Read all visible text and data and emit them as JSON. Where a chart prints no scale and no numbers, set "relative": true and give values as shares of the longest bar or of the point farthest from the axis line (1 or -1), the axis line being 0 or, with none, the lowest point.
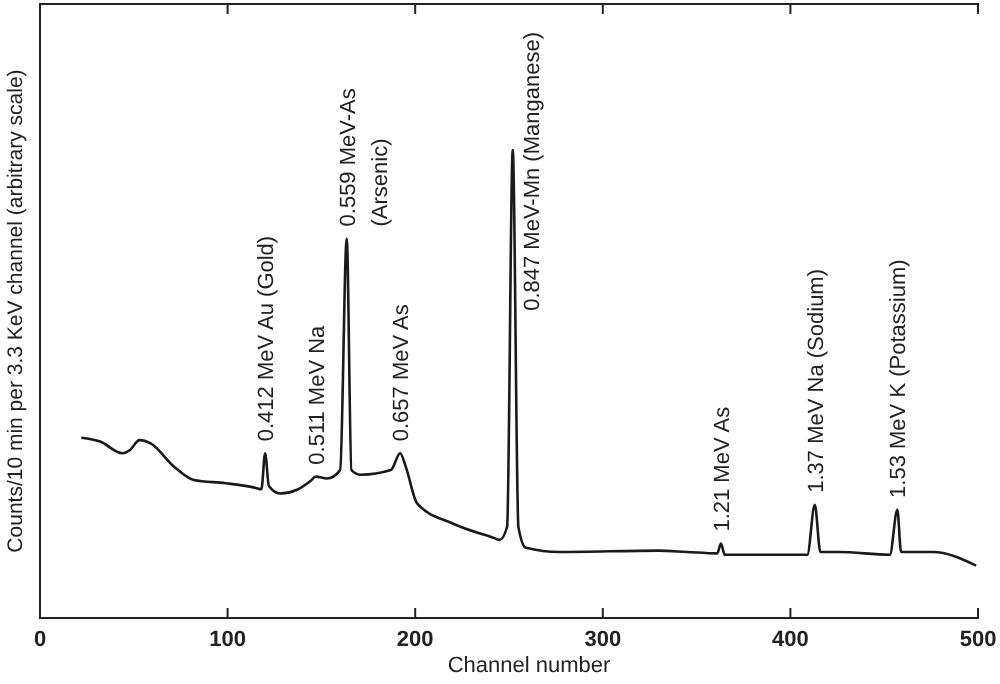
{
  "chart_data": {
    "type": "line",
    "relative": true,
    "xlabel": "Channel number",
    "ylabel": "Counts/10 min per 3.3 KeV channel (arbitrary scale)",
    "xlim": [
      0,
      500
    ],
    "xticks": [
      0,
      100,
      200,
      300,
      400,
      500
    ],
    "grid": false,
    "marker": "none",
    "line_style": "solid",
    "series": [
      {
        "color": "#1a1a1a",
        "x": [
          22,
          32,
          44,
          48,
          53,
          59,
          71,
          82,
          99,
          115,
          118,
          120,
          122,
          128,
          137,
          144,
          147,
          153,
          160,
          163.5,
          166,
          171,
          187,
          192,
          195,
          201,
          220,
          242,
          245,
          249,
          252,
          255,
          259,
          277,
          330,
          345,
          361,
          363,
          365,
          409,
          413,
          416,
          426,
          453,
          457,
          459,
          476,
          499
        ],
        "values": [
          0.385,
          0.377,
          0.352,
          0.359,
          0.38,
          0.373,
          0.325,
          0.295,
          0.288,
          0.278,
          0.275,
          0.352,
          0.282,
          0.266,
          0.274,
          0.292,
          0.302,
          0.298,
          0.316,
          0.811,
          0.316,
          0.306,
          0.316,
          0.352,
          0.323,
          0.245,
          0.202,
          0.171,
          0.167,
          0.195,
          1.0,
          0.195,
          0.15,
          0.141,
          0.144,
          0.141,
          0.138,
          0.159,
          0.135,
          0.135,
          0.242,
          0.141,
          0.141,
          0.135,
          0.231,
          0.141,
          0.141,
          0.112
        ]
      }
    ],
    "annotations": [
      {
        "text": "0.412 MeV  Au  (Gold)",
        "x": 120,
        "y": 0.352
      },
      {
        "text": "0.511 MeV  Na",
        "x": 147,
        "y": 0.302
      },
      {
        "text": "0.559 MeV-As\n(Arsenic)",
        "x": 163.5,
        "y": 0.811
      },
      {
        "text": "0.657 MeV  As",
        "x": 192,
        "y": 0.352
      },
      {
        "text": "0.847 MeV-Mn  (Manganese)",
        "x": 252,
        "y": 1.0
      },
      {
        "text": "1.21 MeV  As",
        "x": 363,
        "y": 0.159
      },
      {
        "text": "1.37 MeV  Na  (Sodium)",
        "x": 413,
        "y": 0.242
      },
      {
        "text": "1.53 MeV  K  (Potassium)",
        "x": 457,
        "y": 0.231
      }
    ]
  }
}
